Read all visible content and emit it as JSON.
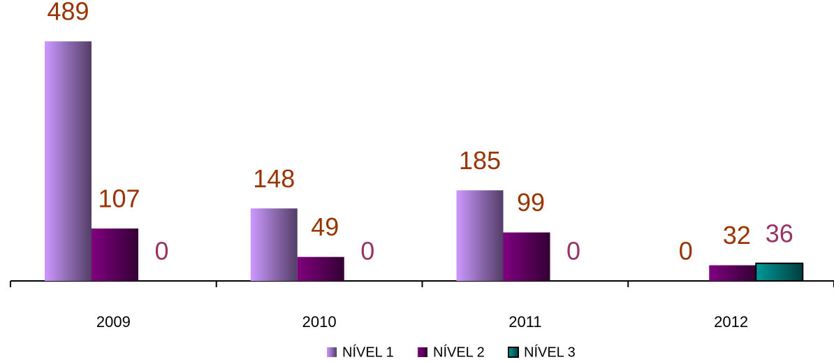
{
  "chart_data": {
    "type": "bar",
    "categories": [
      "2009",
      "2010",
      "2011",
      "2012"
    ],
    "series": [
      {
        "name": "NÍVEL 1",
        "color": "#cc99ff",
        "label_color": "#993300",
        "values": [
          489,
          148,
          185,
          0
        ]
      },
      {
        "name": "NÍVEL 2",
        "color": "#800080",
        "label_color": "#993300",
        "values": [
          107,
          49,
          99,
          32
        ]
      },
      {
        "name": "NÍVEL 3",
        "color": "#009999",
        "label_color": "#993366",
        "values": [
          0,
          0,
          0,
          36
        ]
      }
    ],
    "ylim": [
      0,
      500
    ]
  }
}
